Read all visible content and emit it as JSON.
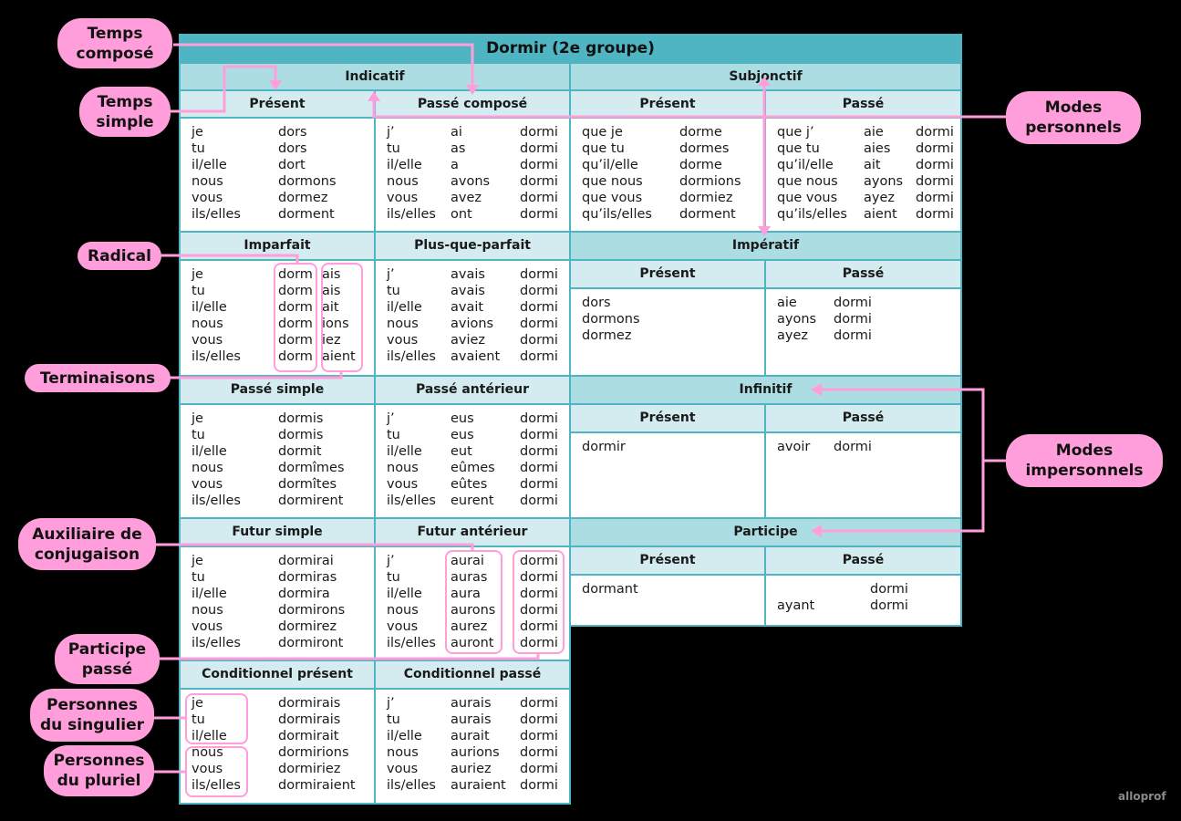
{
  "title": "Dormir (2e groupe)",
  "modes": {
    "indicatif": "Indicatif",
    "subjonctif": "Subjonctif",
    "imperatif": "Impératif",
    "infinitif": "Infinitif",
    "participe": "Participe"
  },
  "indicatif": {
    "present": {
      "label": "Présent",
      "rows": [
        [
          "je",
          "dors"
        ],
        [
          "tu",
          "dors"
        ],
        [
          "il/elle",
          "dort"
        ],
        [
          "nous",
          "dormons"
        ],
        [
          "vous",
          "dormez"
        ],
        [
          "ils/elles",
          "dorment"
        ]
      ]
    },
    "passe_compose": {
      "label": "Passé composé",
      "rows": [
        [
          "j’",
          "ai",
          "dormi"
        ],
        [
          "tu",
          "as",
          "dormi"
        ],
        [
          "il/elle",
          "a",
          "dormi"
        ],
        [
          "nous",
          "avons",
          "dormi"
        ],
        [
          "vous",
          "avez",
          "dormi"
        ],
        [
          "ils/elles",
          "ont",
          "dormi"
        ]
      ]
    },
    "imparfait": {
      "label": "Imparfait",
      "rows": [
        [
          "je",
          "dorm",
          "ais"
        ],
        [
          "tu",
          "dorm",
          "ais"
        ],
        [
          "il/elle",
          "dorm",
          "ait"
        ],
        [
          "nous",
          "dorm",
          "ions"
        ],
        [
          "vous",
          "dorm",
          "iez"
        ],
        [
          "ils/elles",
          "dorm",
          "aient"
        ]
      ]
    },
    "plus_que_parfait": {
      "label": "Plus-que-parfait",
      "rows": [
        [
          "j’",
          "avais",
          "dormi"
        ],
        [
          "tu",
          "avais",
          "dormi"
        ],
        [
          "il/elle",
          "avait",
          "dormi"
        ],
        [
          "nous",
          "avions",
          "dormi"
        ],
        [
          "vous",
          "aviez",
          "dormi"
        ],
        [
          "ils/elles",
          "avaient",
          "dormi"
        ]
      ]
    },
    "passe_simple": {
      "label": "Passé simple",
      "rows": [
        [
          "je",
          "dormis"
        ],
        [
          "tu",
          "dormis"
        ],
        [
          "il/elle",
          "dormit"
        ],
        [
          "nous",
          "dormîmes"
        ],
        [
          "vous",
          "dormîtes"
        ],
        [
          "ils/elles",
          "dormirent"
        ]
      ]
    },
    "passe_anterieur": {
      "label": "Passé antérieur",
      "rows": [
        [
          "j’",
          "eus",
          "dormi"
        ],
        [
          "tu",
          "eus",
          "dormi"
        ],
        [
          "il/elle",
          "eut",
          "dormi"
        ],
        [
          "nous",
          "eûmes",
          "dormi"
        ],
        [
          "vous",
          "eûtes",
          "dormi"
        ],
        [
          "ils/elles",
          "eurent",
          "dormi"
        ]
      ]
    },
    "futur_simple": {
      "label": "Futur simple",
      "rows": [
        [
          "je",
          "dormirai"
        ],
        [
          "tu",
          "dormiras"
        ],
        [
          "il/elle",
          "dormira"
        ],
        [
          "nous",
          "dormirons"
        ],
        [
          "vous",
          "dormirez"
        ],
        [
          "ils/elles",
          "dormiront"
        ]
      ]
    },
    "futur_anterieur": {
      "label": "Futur antérieur",
      "rows": [
        [
          "j’",
          "aurai",
          "dormi"
        ],
        [
          "tu",
          "auras",
          "dormi"
        ],
        [
          "il/elle",
          "aura",
          "dormi"
        ],
        [
          "nous",
          "aurons",
          "dormi"
        ],
        [
          "vous",
          "aurez",
          "dormi"
        ],
        [
          "ils/elles",
          "auront",
          "dormi"
        ]
      ]
    },
    "conditionnel_present": {
      "label": "Conditionnel présent",
      "rows": [
        [
          "je",
          "dormirais"
        ],
        [
          "tu",
          "dormirais"
        ],
        [
          "il/elle",
          "dormirait"
        ],
        [
          "nous",
          "dormirions"
        ],
        [
          "vous",
          "dormiriez"
        ],
        [
          "ils/elles",
          "dormiraient"
        ]
      ]
    },
    "conditionnel_passe": {
      "label": "Conditionnel passé",
      "rows": [
        [
          "j’",
          "aurais",
          "dormi"
        ],
        [
          "tu",
          "aurais",
          "dormi"
        ],
        [
          "il/elle",
          "aurait",
          "dormi"
        ],
        [
          "nous",
          "aurions",
          "dormi"
        ],
        [
          "vous",
          "auriez",
          "dormi"
        ],
        [
          "ils/elles",
          "auraient",
          "dormi"
        ]
      ]
    }
  },
  "subjonctif": {
    "present": {
      "label": "Présent",
      "rows": [
        [
          "que je",
          "dorme"
        ],
        [
          "que tu",
          "dormes"
        ],
        [
          "qu’il/elle",
          "dorme"
        ],
        [
          "que nous",
          "dormions"
        ],
        [
          "que vous",
          "dormiez"
        ],
        [
          "qu’ils/elles",
          "dorment"
        ]
      ]
    },
    "passe": {
      "label": "Passé",
      "rows": [
        [
          "que j’",
          "aie",
          "dormi"
        ],
        [
          "que tu",
          "aies",
          "dormi"
        ],
        [
          "qu’il/elle",
          "ait",
          "dormi"
        ],
        [
          "que nous",
          "ayons",
          "dormi"
        ],
        [
          "que vous",
          "ayez",
          "dormi"
        ],
        [
          "qu’ils/elles",
          "aient",
          "dormi"
        ]
      ]
    }
  },
  "imperatif": {
    "present": {
      "label": "Présent",
      "rows": [
        [
          "dors"
        ],
        [
          "dormons"
        ],
        [
          "dormez"
        ]
      ]
    },
    "passe": {
      "label": "Passé",
      "rows": [
        [
          "aie",
          "dormi"
        ],
        [
          "ayons",
          "dormi"
        ],
        [
          "ayez",
          "dormi"
        ]
      ]
    }
  },
  "infinitif": {
    "present": {
      "label": "Présent",
      "rows": [
        [
          "dormir"
        ]
      ]
    },
    "passe": {
      "label": "Passé",
      "rows": [
        [
          "avoir",
          "dormi"
        ]
      ]
    }
  },
  "participe": {
    "present": {
      "label": "Présent",
      "rows": [
        [
          "dormant"
        ]
      ]
    },
    "passe": {
      "label": "Passé",
      "rows": [
        [
          "",
          "dormi"
        ],
        [
          "ayant",
          "dormi"
        ]
      ]
    }
  },
  "callouts": {
    "temps_compose": "Temps composé",
    "temps_simple": "Temps simple",
    "radical": "Radical",
    "terminaisons": "Terminaisons",
    "auxiliaire": "Auxiliaire de conjugaison",
    "participe_passe": "Participe passé",
    "pers_singulier": "Personnes du singulier",
    "pers_pluriel": "Personnes du pluriel",
    "modes_personnels": "Modes personnels",
    "modes_impersonnels": "Modes impersonnels"
  },
  "logo": "alloprof",
  "colors": {
    "teal": "#4fb5c2",
    "mode_bg": "#acdde2",
    "tense_bg": "#d4ecf0",
    "pink": "#ff9edb"
  }
}
